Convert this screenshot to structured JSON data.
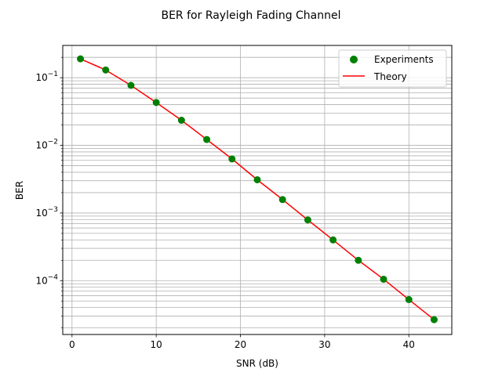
{
  "chart_data": {
    "type": "line",
    "title": "BER for Rayleigh Fading Channel",
    "xlabel": "SNR (dB)",
    "ylabel": "BER",
    "xscale": "linear",
    "yscale": "log",
    "xlim": [
      -1.1,
      45.1
    ],
    "ylim": [
      1.6e-05,
      0.3
    ],
    "xticks": [
      0,
      10,
      20,
      30,
      40
    ],
    "yticks": [
      {
        "value": 0.1,
        "base": "10",
        "exp": "−1"
      },
      {
        "value": 0.01,
        "base": "10",
        "exp": "−2"
      },
      {
        "value": 0.001,
        "base": "10",
        "exp": "−3"
      },
      {
        "value": 0.0001,
        "base": "10",
        "exp": "−4"
      }
    ],
    "grid": true,
    "grid_minor": true,
    "legend_position": "top-right",
    "series": [
      {
        "name": "Experiments",
        "kind": "markers",
        "color": "#008000",
        "x": [
          1,
          4,
          7,
          10,
          13,
          16,
          19,
          22,
          25,
          28,
          31,
          34,
          37,
          40,
          43
        ],
        "y": [
          0.19,
          0.13,
          0.077,
          0.043,
          0.0235,
          0.0122,
          0.0063,
          0.0031,
          0.00158,
          0.00079,
          0.0004,
          0.0002,
          0.000105,
          5.25e-05,
          2.65e-05
        ]
      },
      {
        "name": "Theory",
        "kind": "line",
        "color": "#ff0000",
        "x": [
          1,
          4,
          7,
          10,
          13,
          16,
          19,
          22,
          25,
          28,
          31,
          34,
          37,
          40,
          43
        ],
        "y": [
          0.19,
          0.13,
          0.077,
          0.043,
          0.0235,
          0.0122,
          0.0063,
          0.0031,
          0.00158,
          0.00079,
          0.0004,
          0.0002,
          0.000105,
          5.25e-05,
          2.65e-05
        ]
      }
    ]
  }
}
